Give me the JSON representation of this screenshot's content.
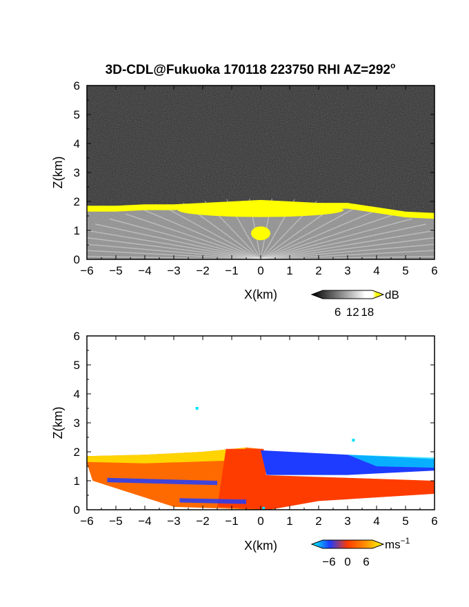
{
  "title_main": "3D-CDL@Fukuoka 170118 223750 RHI AZ=292",
  "title_sup": "o",
  "chart_data": [
    {
      "type": "heatmap",
      "field": "backscatter",
      "xlabel": "X(km)",
      "ylabel": "Z(km)",
      "xlim": [
        -6,
        6
      ],
      "ylim": [
        0,
        6
      ],
      "xticks": [
        -6,
        -5,
        -4,
        -3,
        -2,
        -1,
        0,
        1,
        2,
        3,
        4,
        5,
        6
      ],
      "yticks": [
        0,
        1,
        2,
        3,
        4,
        5,
        6
      ],
      "colorbar": {
        "label": "dB",
        "ticks": [
          6,
          12,
          18
        ],
        "range": [
          0,
          20
        ]
      },
      "colors": {
        "background": "#2a2a2a",
        "layer": "#d8d8d8",
        "saturated": "#ffff00"
      },
      "cloud_base_km": [
        [
          -6,
          1.85
        ],
        [
          -5,
          1.85
        ],
        [
          -4,
          1.9
        ],
        [
          -3,
          1.9
        ],
        [
          -2,
          1.95
        ],
        [
          -1,
          2.0
        ],
        [
          0,
          2.05
        ],
        [
          1,
          2.0
        ],
        [
          2,
          1.95
        ],
        [
          3,
          1.95
        ],
        [
          4,
          1.8
        ],
        [
          5,
          1.65
        ],
        [
          6,
          1.6
        ]
      ]
    },
    {
      "type": "heatmap",
      "field": "radial_velocity",
      "xlabel": "X(km)",
      "ylabel": "Z(km)",
      "xlim": [
        -6,
        6
      ],
      "ylim": [
        0,
        6
      ],
      "xticks": [
        -6,
        -5,
        -4,
        -3,
        -2,
        -1,
        0,
        1,
        2,
        3,
        4,
        5,
        6
      ],
      "yticks": [
        0,
        1,
        2,
        3,
        4,
        5,
        6
      ],
      "colorbar": {
        "label": "ms",
        "label_sup": "−1",
        "ticks": [
          -6,
          0,
          6
        ],
        "range": [
          -8,
          8
        ]
      },
      "colors": {
        "negative": "#1e3cff",
        "zero": "#ff3c00",
        "positive": "#ffe000",
        "light_negative": "#00e0ff"
      }
    }
  ]
}
